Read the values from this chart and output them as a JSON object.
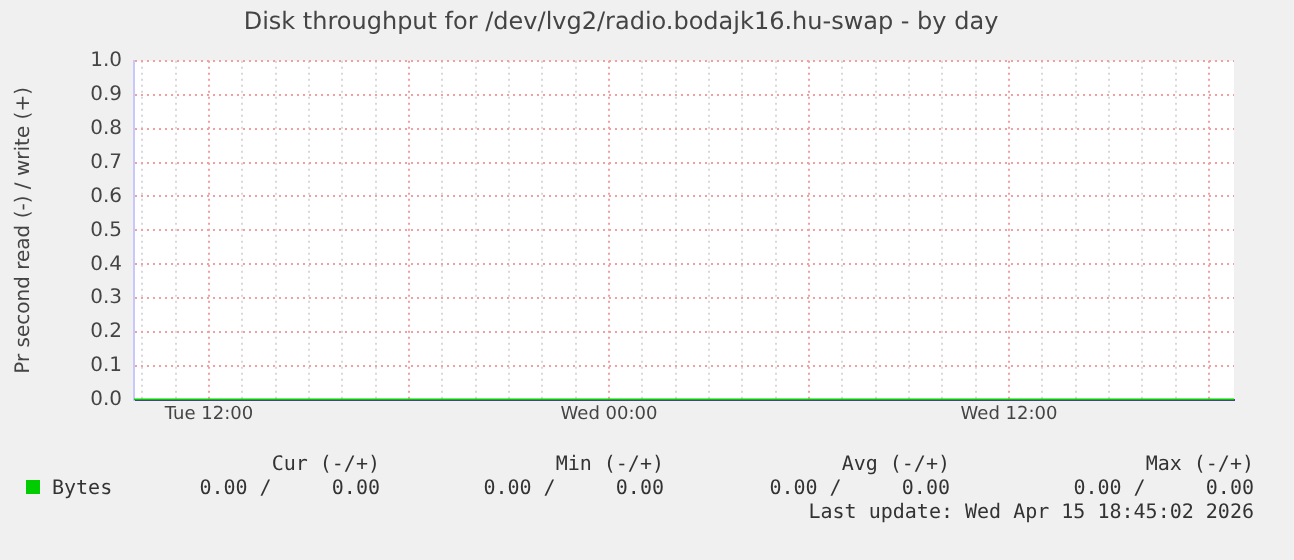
{
  "chart_data": {
    "type": "line",
    "title": "Disk throughput for /dev/lvg2/radio.bodajk16.hu-swap - by day",
    "ylabel": "Pr second read (-) / write (+)",
    "x": [
      "2026-04-14T09:45",
      "2026-04-15T18:45"
    ],
    "series": [
      {
        "name": "Bytes",
        "color": "#00cc00",
        "values": [
          0,
          0
        ]
      }
    ],
    "xlim": [
      "2026-04-14T09:45",
      "2026-04-15T18:45"
    ],
    "xticks": [
      {
        "value": "2026-04-14T10:00",
        "label": null
      },
      {
        "value": "2026-04-14T11:00",
        "label": null
      },
      {
        "value": "2026-04-14T12:00",
        "label": "Tue 12:00"
      },
      {
        "value": "2026-04-14T13:00",
        "label": null
      },
      {
        "value": "2026-04-14T14:00",
        "label": null
      },
      {
        "value": "2026-04-14T15:00",
        "label": null
      },
      {
        "value": "2026-04-14T16:00",
        "label": null
      },
      {
        "value": "2026-04-14T17:00",
        "label": null
      },
      {
        "value": "2026-04-14T18:00",
        "label": null
      },
      {
        "value": "2026-04-14T19:00",
        "label": null
      },
      {
        "value": "2026-04-14T20:00",
        "label": null
      },
      {
        "value": "2026-04-14T21:00",
        "label": null
      },
      {
        "value": "2026-04-14T22:00",
        "label": null
      },
      {
        "value": "2026-04-14T23:00",
        "label": null
      },
      {
        "value": "2026-04-15T00:00",
        "label": "Wed 00:00"
      },
      {
        "value": "2026-04-15T01:00",
        "label": null
      },
      {
        "value": "2026-04-15T02:00",
        "label": null
      },
      {
        "value": "2026-04-15T03:00",
        "label": null
      },
      {
        "value": "2026-04-15T04:00",
        "label": null
      },
      {
        "value": "2026-04-15T05:00",
        "label": null
      },
      {
        "value": "2026-04-15T06:00",
        "label": null
      },
      {
        "value": "2026-04-15T07:00",
        "label": null
      },
      {
        "value": "2026-04-15T08:00",
        "label": null
      },
      {
        "value": "2026-04-15T09:00",
        "label": null
      },
      {
        "value": "2026-04-15T10:00",
        "label": null
      },
      {
        "value": "2026-04-15T11:00",
        "label": null
      },
      {
        "value": "2026-04-15T12:00",
        "label": "Wed 12:00"
      },
      {
        "value": "2026-04-15T13:00",
        "label": null
      },
      {
        "value": "2026-04-15T14:00",
        "label": null
      },
      {
        "value": "2026-04-15T15:00",
        "label": null
      },
      {
        "value": "2026-04-15T16:00",
        "label": null
      },
      {
        "value": "2026-04-15T17:00",
        "label": null
      },
      {
        "value": "2026-04-15T18:00",
        "label": null
      }
    ],
    "ylim": [
      0,
      1
    ],
    "yticks": [
      {
        "value": 0,
        "label": "0.0"
      },
      0.1,
      0.2,
      0.3,
      0.4,
      0.5,
      0.6,
      0.7,
      0.8,
      0.9,
      {
        "value": 1,
        "label": "1.0"
      }
    ],
    "grid": true,
    "legend": "bottom left",
    "marker": "none",
    "line_style": "solid",
    "annotations": [
      "Cur (-/+)",
      "Min (-/+)",
      "Avg (-/+)",
      "Max (-/+)",
      "0.00 /     0.00",
      "0.00 /     0.00",
      "0.00 /     0.00",
      "0.00 /     0.00",
      "Last update: Wed Apr 15 18:45:02 2026"
    ]
  }
}
